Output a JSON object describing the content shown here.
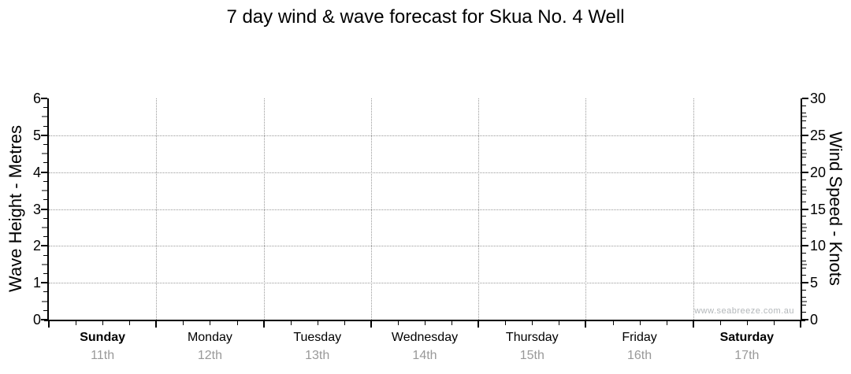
{
  "chart_data": {
    "type": "line",
    "title": "7 day wind & wave forecast for Skua No. 4 Well",
    "series": [],
    "y_left": {
      "label": "Wave Height - Metres",
      "min": 0,
      "max": 6,
      "major_step": 1,
      "minor_step": 0.25,
      "ticks": [
        0,
        1,
        2,
        3,
        4,
        5,
        6
      ]
    },
    "y_right": {
      "label": "Wind Speed - Knots",
      "min": 0,
      "max": 30,
      "major_step": 5,
      "minor_step": 1,
      "ticks": [
        0,
        5,
        10,
        15,
        20,
        25,
        30
      ]
    },
    "x": {
      "days": [
        {
          "name": "Sunday",
          "date": "11th",
          "bold": true
        },
        {
          "name": "Monday",
          "date": "12th",
          "bold": false
        },
        {
          "name": "Tuesday",
          "date": "13th",
          "bold": false
        },
        {
          "name": "Wednesday",
          "date": "14th",
          "bold": false
        },
        {
          "name": "Thursday",
          "date": "15th",
          "bold": false
        },
        {
          "name": "Friday",
          "date": "16th",
          "bold": false
        },
        {
          "name": "Saturday",
          "date": "17th",
          "bold": true
        }
      ],
      "minor_ticks_per_day": 4
    },
    "grid": {
      "horizontal": true,
      "vertical": true,
      "style": "dotted"
    },
    "legend": "none",
    "colors": {
      "axis": "#000000",
      "grid": "#999999",
      "date_label": "#999999",
      "half_tick": "#808080",
      "watermark": "#b3b7ba"
    }
  },
  "watermark": "www.seabreeze.com.au"
}
